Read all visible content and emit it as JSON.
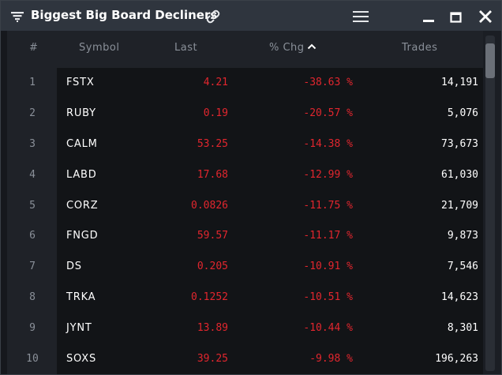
{
  "window": {
    "title": "Biggest Big Board Decliners"
  },
  "icons": {
    "filter": "filter-icon",
    "link": "link-icon",
    "menu": "hamburger-menu-icon",
    "minimize": "minimize-icon",
    "maximize": "maximize-icon",
    "close": "close-icon",
    "sort": "sort-ascending-icon"
  },
  "colors": {
    "negative": "#e2262e",
    "text": "#ffffff",
    "muted": "#8a9099",
    "titlebar": "#2f353e"
  },
  "table": {
    "headers": {
      "index": "#",
      "symbol": "Symbol",
      "last": "Last",
      "chg": "% Chg",
      "trades": "Trades"
    },
    "sort_column": "% Chg",
    "rows": [
      {
        "idx": "1",
        "symbol": "FSTX",
        "last": "4.21",
        "chg": "-38.63 %",
        "trades": "14,191"
      },
      {
        "idx": "2",
        "symbol": "RUBY",
        "last": "0.19",
        "chg": "-20.57 %",
        "trades": "5,076"
      },
      {
        "idx": "3",
        "symbol": "CALM",
        "last": "53.25",
        "chg": "-14.38 %",
        "trades": "73,673"
      },
      {
        "idx": "4",
        "symbol": "LABD",
        "last": "17.68",
        "chg": "-12.99 %",
        "trades": "61,030"
      },
      {
        "idx": "5",
        "symbol": "CORZ",
        "last": "0.0826",
        "chg": "-11.75 %",
        "trades": "21,709"
      },
      {
        "idx": "6",
        "symbol": "FNGD",
        "last": "59.57",
        "chg": "-11.17 %",
        "trades": "9,873"
      },
      {
        "idx": "7",
        "symbol": "DS",
        "last": "0.205",
        "chg": "-10.91 %",
        "trades": "7,546"
      },
      {
        "idx": "8",
        "symbol": "TRKA",
        "last": "0.1252",
        "chg": "-10.51 %",
        "trades": "14,623"
      },
      {
        "idx": "9",
        "symbol": "JYNT",
        "last": "13.89",
        "chg": "-10.44 %",
        "trades": "8,301"
      },
      {
        "idx": "10",
        "symbol": "SOXS",
        "last": "39.25",
        "chg": "-9.98 %",
        "trades": "196,263"
      }
    ]
  }
}
